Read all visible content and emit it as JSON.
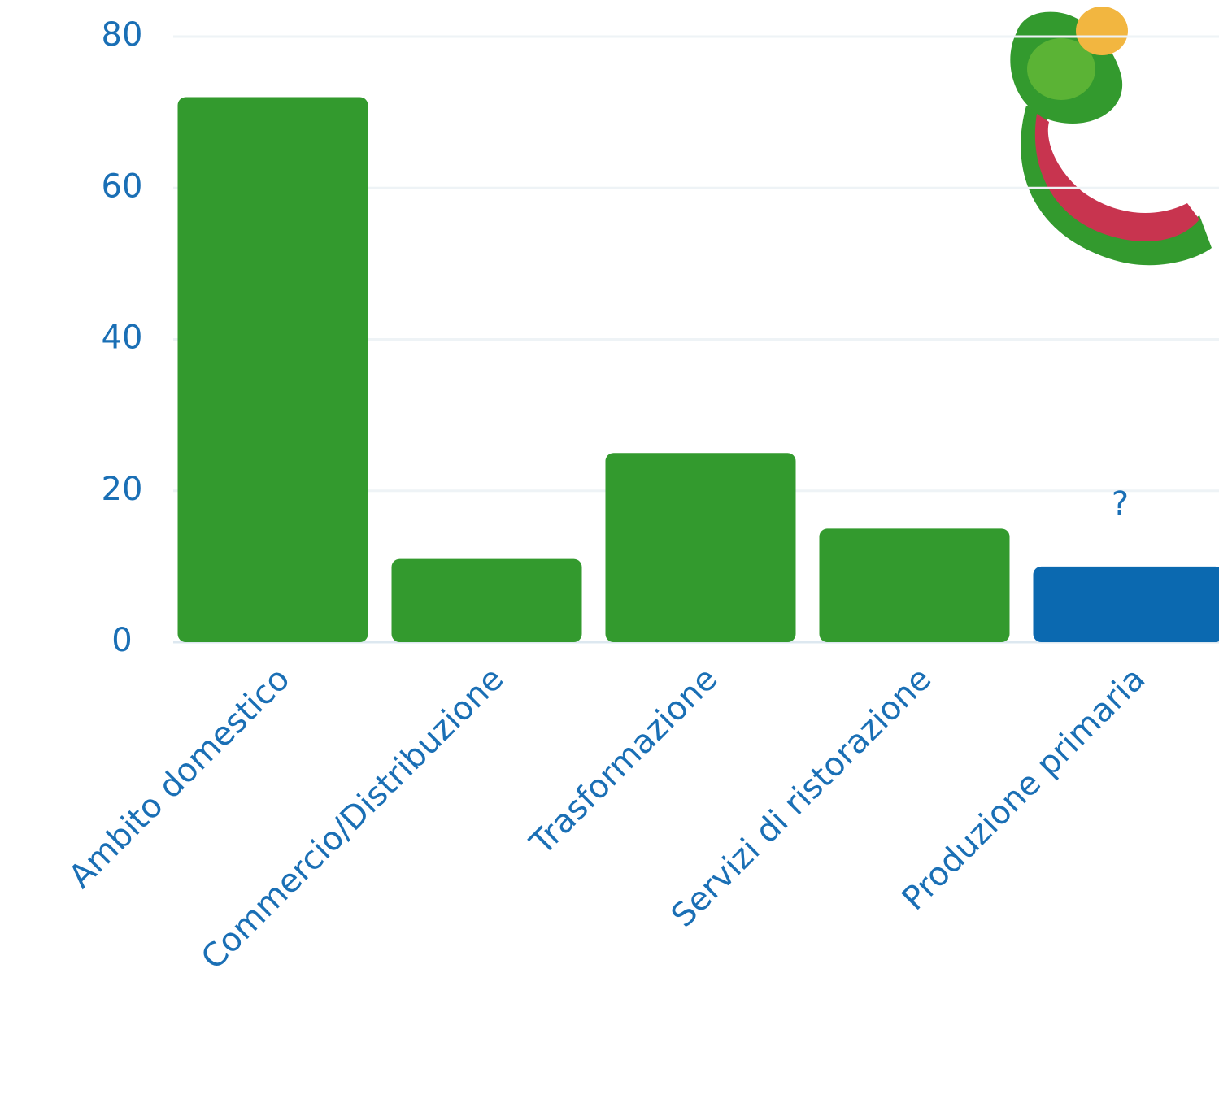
{
  "chart_data": {
    "type": "bar",
    "categories": [
      "Ambito domestico",
      "Commercio/Distribuzione",
      "Trasformazione",
      "Servizi di ristorazione",
      "Produzione primaria"
    ],
    "values": [
      72,
      11,
      25,
      15,
      10
    ],
    "colors": [
      "#339a2e",
      "#339a2e",
      "#339a2e",
      "#339a2e",
      "#0b69b0"
    ],
    "annotations": [
      {
        "text": "?",
        "x": "Produzione primaria"
      }
    ],
    "ylim": [
      0,
      80
    ],
    "yticks": [
      0,
      20,
      40,
      60,
      80
    ],
    "grid": true
  }
}
